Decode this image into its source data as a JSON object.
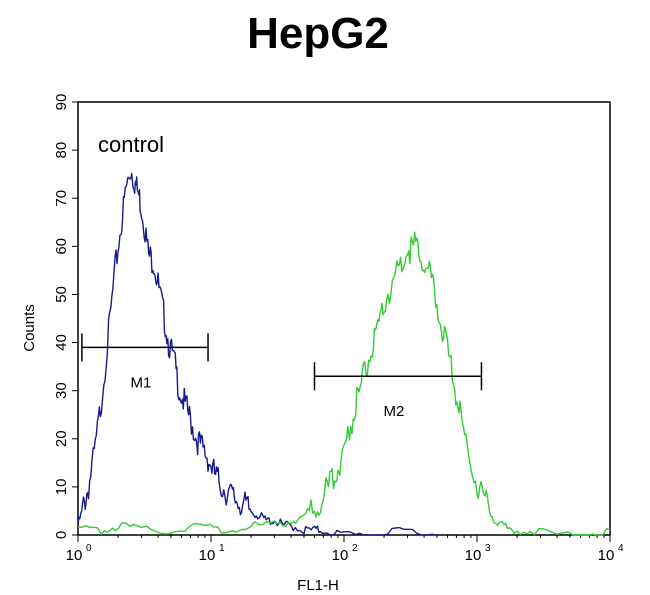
{
  "chart_data": {
    "type": "line",
    "title": "HepG2",
    "xlabel": "FL1-H",
    "ylabel": "Counts",
    "x_scale": "log",
    "xlim": [
      1,
      10000
    ],
    "ylim": [
      0,
      90
    ],
    "x_ticks": [
      {
        "value": 1,
        "base": "10",
        "exp": "0"
      },
      {
        "value": 10,
        "base": "10",
        "exp": "1"
      },
      {
        "value": 100,
        "base": "10",
        "exp": "2"
      },
      {
        "value": 1000,
        "base": "10",
        "exp": "3"
      },
      {
        "value": 10000,
        "base": "10",
        "exp": "4"
      }
    ],
    "y_ticks": [
      "0",
      "10",
      "20",
      "30",
      "40",
      "50",
      "60",
      "70",
      "80",
      "90"
    ],
    "grid": false,
    "annotation": "control",
    "series": [
      {
        "color": "#1a1a8c",
        "x": [
          1.0,
          1.1,
          1.2,
          1.35,
          1.5,
          1.7,
          1.9,
          2.1,
          2.3,
          2.5,
          2.7,
          2.9,
          3.1,
          3.4,
          3.7,
          4.0,
          4.4,
          4.8,
          5.3,
          5.8,
          6.4,
          7.0,
          7.8,
          8.6,
          9.5,
          10.5,
          11.5,
          13,
          14.5,
          16,
          18,
          20,
          23,
          26,
          30,
          35,
          40,
          50,
          60,
          70,
          100,
          150,
          200,
          300,
          500
        ],
        "y": [
          2,
          6,
          10,
          18,
          28,
          42,
          55,
          64,
          72,
          76,
          73,
          70,
          66,
          58,
          57,
          52,
          46,
          40,
          36,
          30,
          27,
          24,
          20,
          18,
          16,
          13,
          11,
          9,
          8,
          7,
          6,
          5,
          4,
          3,
          3,
          2,
          2,
          1,
          1,
          1,
          0,
          0,
          0,
          1,
          0
        ]
      },
      {
        "color": "#33cc33",
        "x": [
          1.0,
          1.5,
          2.0,
          3.0,
          5.0,
          8.0,
          12,
          20,
          30,
          40,
          50,
          60,
          70,
          80,
          90,
          100,
          110,
          125,
          140,
          160,
          180,
          200,
          230,
          260,
          300,
          340,
          380,
          430,
          480,
          540,
          600,
          680,
          760,
          860,
          1000,
          1150,
          1300,
          1500,
          1800,
          2500,
          4000,
          7000,
          10000
        ],
        "y": [
          1,
          1,
          2,
          1,
          1,
          2,
          1,
          2,
          2,
          3,
          4,
          6,
          8,
          11,
          14,
          18,
          22,
          28,
          33,
          38,
          42,
          48,
          52,
          56,
          59,
          60,
          58,
          55,
          50,
          44,
          38,
          31,
          24,
          17,
          11,
          7,
          4,
          2,
          1,
          1,
          0,
          0,
          1
        ]
      }
    ],
    "markers": [
      {
        "label": "M1",
        "x_start": 1.07,
        "x_end": 9.5,
        "y": 39
      },
      {
        "label": "M2",
        "x_start": 60,
        "x_end": 1080,
        "y": 33
      }
    ]
  }
}
